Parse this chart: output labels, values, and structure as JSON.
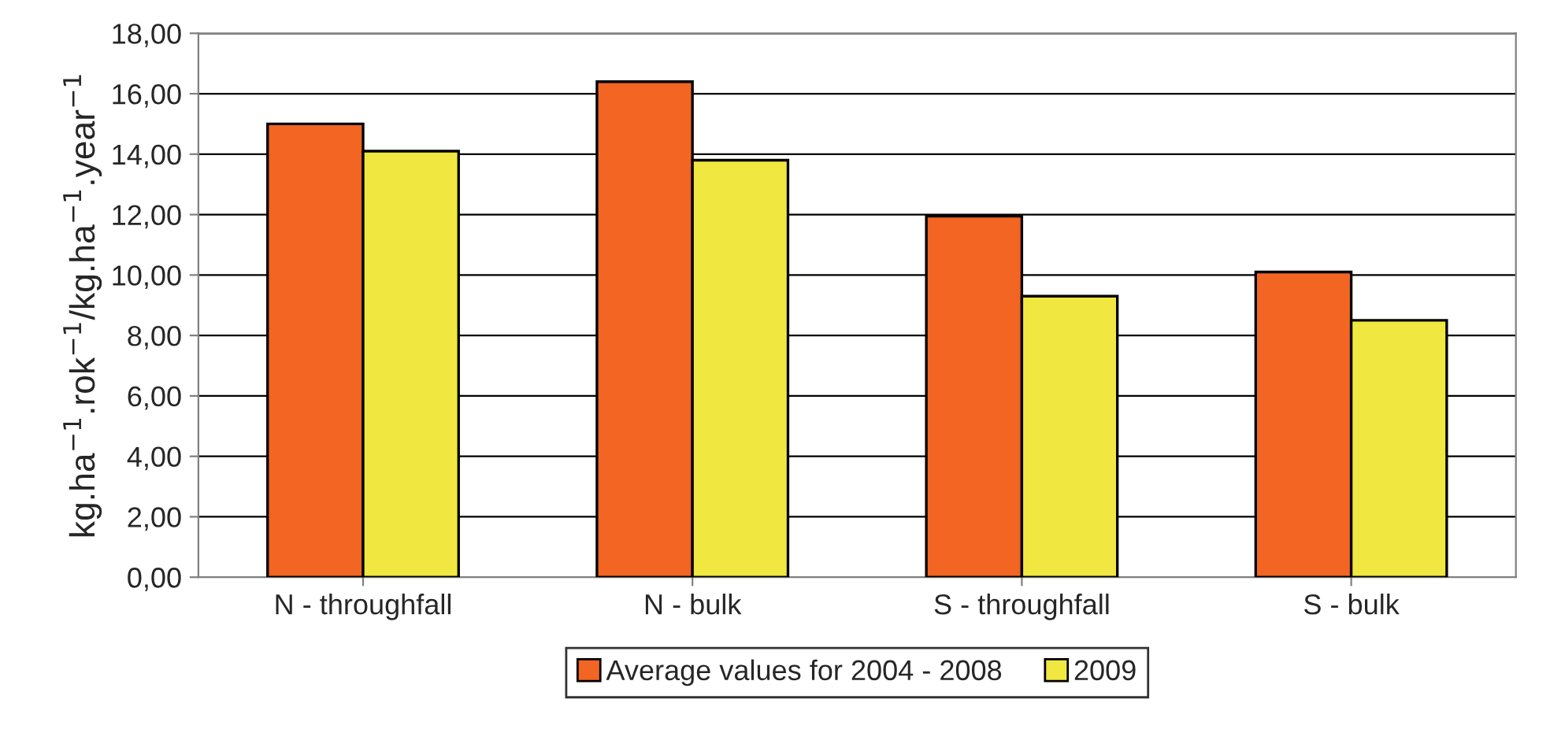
{
  "chart_data": {
    "type": "bar",
    "ylabel": "kg.ha$^{−1}$.rok$^{−1}$/kg.ha$^{−1}$.year$^{−1}$",
    "categories": [
      "N - throughfall",
      "N - bulk",
      "S - throughfall",
      "S - bulk"
    ],
    "series": [
      {
        "name": "Average values for 2004 - 2008",
        "color": "#f26522",
        "values": [
          15.0,
          16.4,
          11.95,
          10.1
        ]
      },
      {
        "name": "2009",
        "color": "#f0e840",
        "values": [
          14.1,
          13.8,
          9.3,
          8.5
        ]
      }
    ],
    "ylim": [
      0,
      18
    ],
    "yticks": [
      {
        "value": 0,
        "label": "0,00"
      },
      {
        "value": 2,
        "label": "2,00"
      },
      {
        "value": 4,
        "label": "4,00"
      },
      {
        "value": 6,
        "label": "6,00"
      },
      {
        "value": 8,
        "label": "8,00"
      },
      {
        "value": 10,
        "label": "10,00"
      },
      {
        "value": 12,
        "label": "12,00"
      },
      {
        "value": 14,
        "label": "14,00"
      },
      {
        "value": 16,
        "label": "16,00"
      },
      {
        "value": 18,
        "label": "18,00"
      }
    ],
    "grid": "y",
    "legend": "bottom"
  }
}
